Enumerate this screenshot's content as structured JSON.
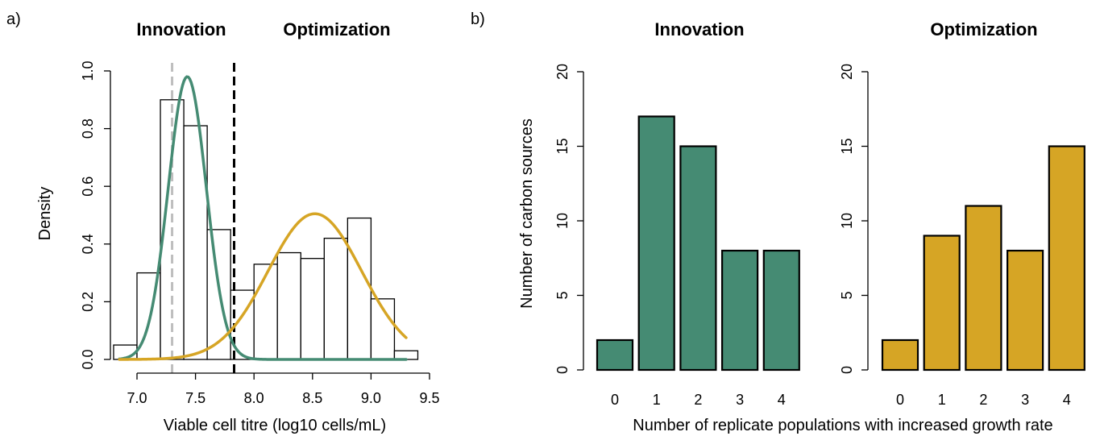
{
  "panel_labels": {
    "a": "a)",
    "b": "b)"
  },
  "colors": {
    "innovation": "#458B73",
    "optimization": "#D6A525",
    "hist_fill": "#ffffff",
    "outline": "#000000",
    "grey_line": "#BEBEBE"
  },
  "chart_data": [
    {
      "type": "histogram",
      "titles": {
        "left": "Innovation",
        "right": "Optimization"
      },
      "xlabel": "Viable cell titre (log10 cells/mL)",
      "ylabel": "Density",
      "xlim": [
        6.8,
        9.5
      ],
      "ylim": [
        0,
        1.0
      ],
      "xticks": [
        "7.0",
        "7.5",
        "8.0",
        "8.5",
        "9.0",
        "9.5"
      ],
      "yticks": [
        "0.0",
        "0.2",
        "0.4",
        "0.6",
        "0.8",
        "1.0"
      ],
      "bin_width": 0.2,
      "bins": [
        {
          "x0": 6.8,
          "x1": 7.0,
          "density": 0.05
        },
        {
          "x0": 7.0,
          "x1": 7.2,
          "density": 0.3
        },
        {
          "x0": 7.2,
          "x1": 7.4,
          "density": 0.9
        },
        {
          "x0": 7.4,
          "x1": 7.6,
          "density": 0.81
        },
        {
          "x0": 7.6,
          "x1": 7.8,
          "density": 0.45
        },
        {
          "x0": 7.8,
          "x1": 8.0,
          "density": 0.24
        },
        {
          "x0": 8.0,
          "x1": 8.2,
          "density": 0.33
        },
        {
          "x0": 8.2,
          "x1": 8.4,
          "density": 0.37
        },
        {
          "x0": 8.4,
          "x1": 8.6,
          "density": 0.35
        },
        {
          "x0": 8.6,
          "x1": 8.8,
          "density": 0.42
        },
        {
          "x0": 8.8,
          "x1": 9.0,
          "density": 0.49
        },
        {
          "x0": 9.0,
          "x1": 9.2,
          "density": 0.21
        },
        {
          "x0": 9.2,
          "x1": 9.4,
          "density": 0.03
        }
      ],
      "curves": [
        {
          "group": "innovation",
          "mean": 7.43,
          "sd": 0.163,
          "peak": 0.98,
          "x_from": 6.85,
          "x_to": 9.3
        },
        {
          "group": "optimization",
          "mean": 8.52,
          "sd": 0.4,
          "peak": 0.505,
          "x_from": 6.85,
          "x_to": 9.3
        }
      ],
      "vlines": [
        {
          "x": 7.3,
          "style": "dashed",
          "color": "grey"
        },
        {
          "x": 7.83,
          "style": "dashed",
          "color": "black"
        }
      ]
    },
    {
      "type": "bar",
      "title": "Innovation",
      "group": "innovation",
      "categories": [
        "0",
        "1",
        "2",
        "3",
        "4"
      ],
      "values": [
        2,
        17,
        15,
        8,
        8
      ],
      "ylim": [
        0,
        20
      ],
      "yticks": [
        "0",
        "5",
        "10",
        "15",
        "20"
      ],
      "ylabel": "Number of carbon sources"
    },
    {
      "type": "bar",
      "title": "Optimization",
      "group": "optimization",
      "categories": [
        "0",
        "1",
        "2",
        "3",
        "4"
      ],
      "values": [
        2,
        9,
        11,
        8,
        15
      ],
      "ylim": [
        0,
        20
      ],
      "yticks": [
        "0",
        "5",
        "10",
        "15",
        "20"
      ],
      "ylabel": ""
    }
  ],
  "shared_xlabel_b": "Number of replicate populations with increased growth rate"
}
